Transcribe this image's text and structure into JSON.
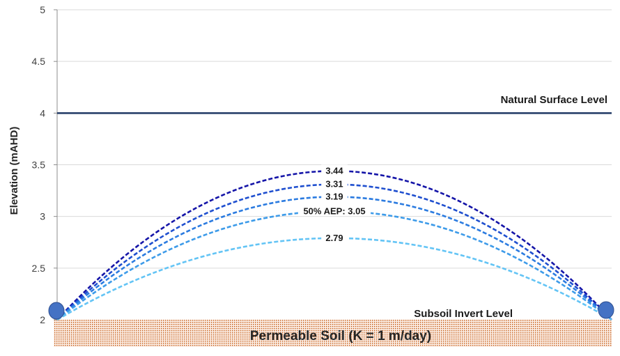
{
  "chart_data": {
    "type": "line",
    "title": "",
    "xlabel": "",
    "ylabel": "Elevation (mAHD)",
    "ylim": [
      2,
      5
    ],
    "yticks": [
      "2",
      "2.5",
      "3",
      "3.5",
      "4",
      "4.5",
      "5"
    ],
    "grid": true,
    "x_range": [
      0,
      1
    ],
    "natural_surface": {
      "label": "Natural Surface Level",
      "value": 4,
      "color": "#1f3864"
    },
    "invert": {
      "label": "Subsoil Invert Level",
      "value": 2,
      "marker_color": "#4472c4"
    },
    "soil": {
      "label": "Permeable Soil (K = 1 m/day)",
      "color": "#c55a11"
    },
    "series": [
      {
        "label": "3.44",
        "peak": 3.44,
        "color": "#1515a8"
      },
      {
        "label": "3.31",
        "peak": 3.31,
        "color": "#1f4fcf"
      },
      {
        "label": "3.19",
        "peak": 3.19,
        "color": "#2b7be0"
      },
      {
        "label": "50% AEP: 3.05",
        "peak": 3.05,
        "color": "#3d9be9"
      },
      {
        "label": "2.79",
        "peak": 2.79,
        "color": "#63c4f5"
      }
    ]
  }
}
